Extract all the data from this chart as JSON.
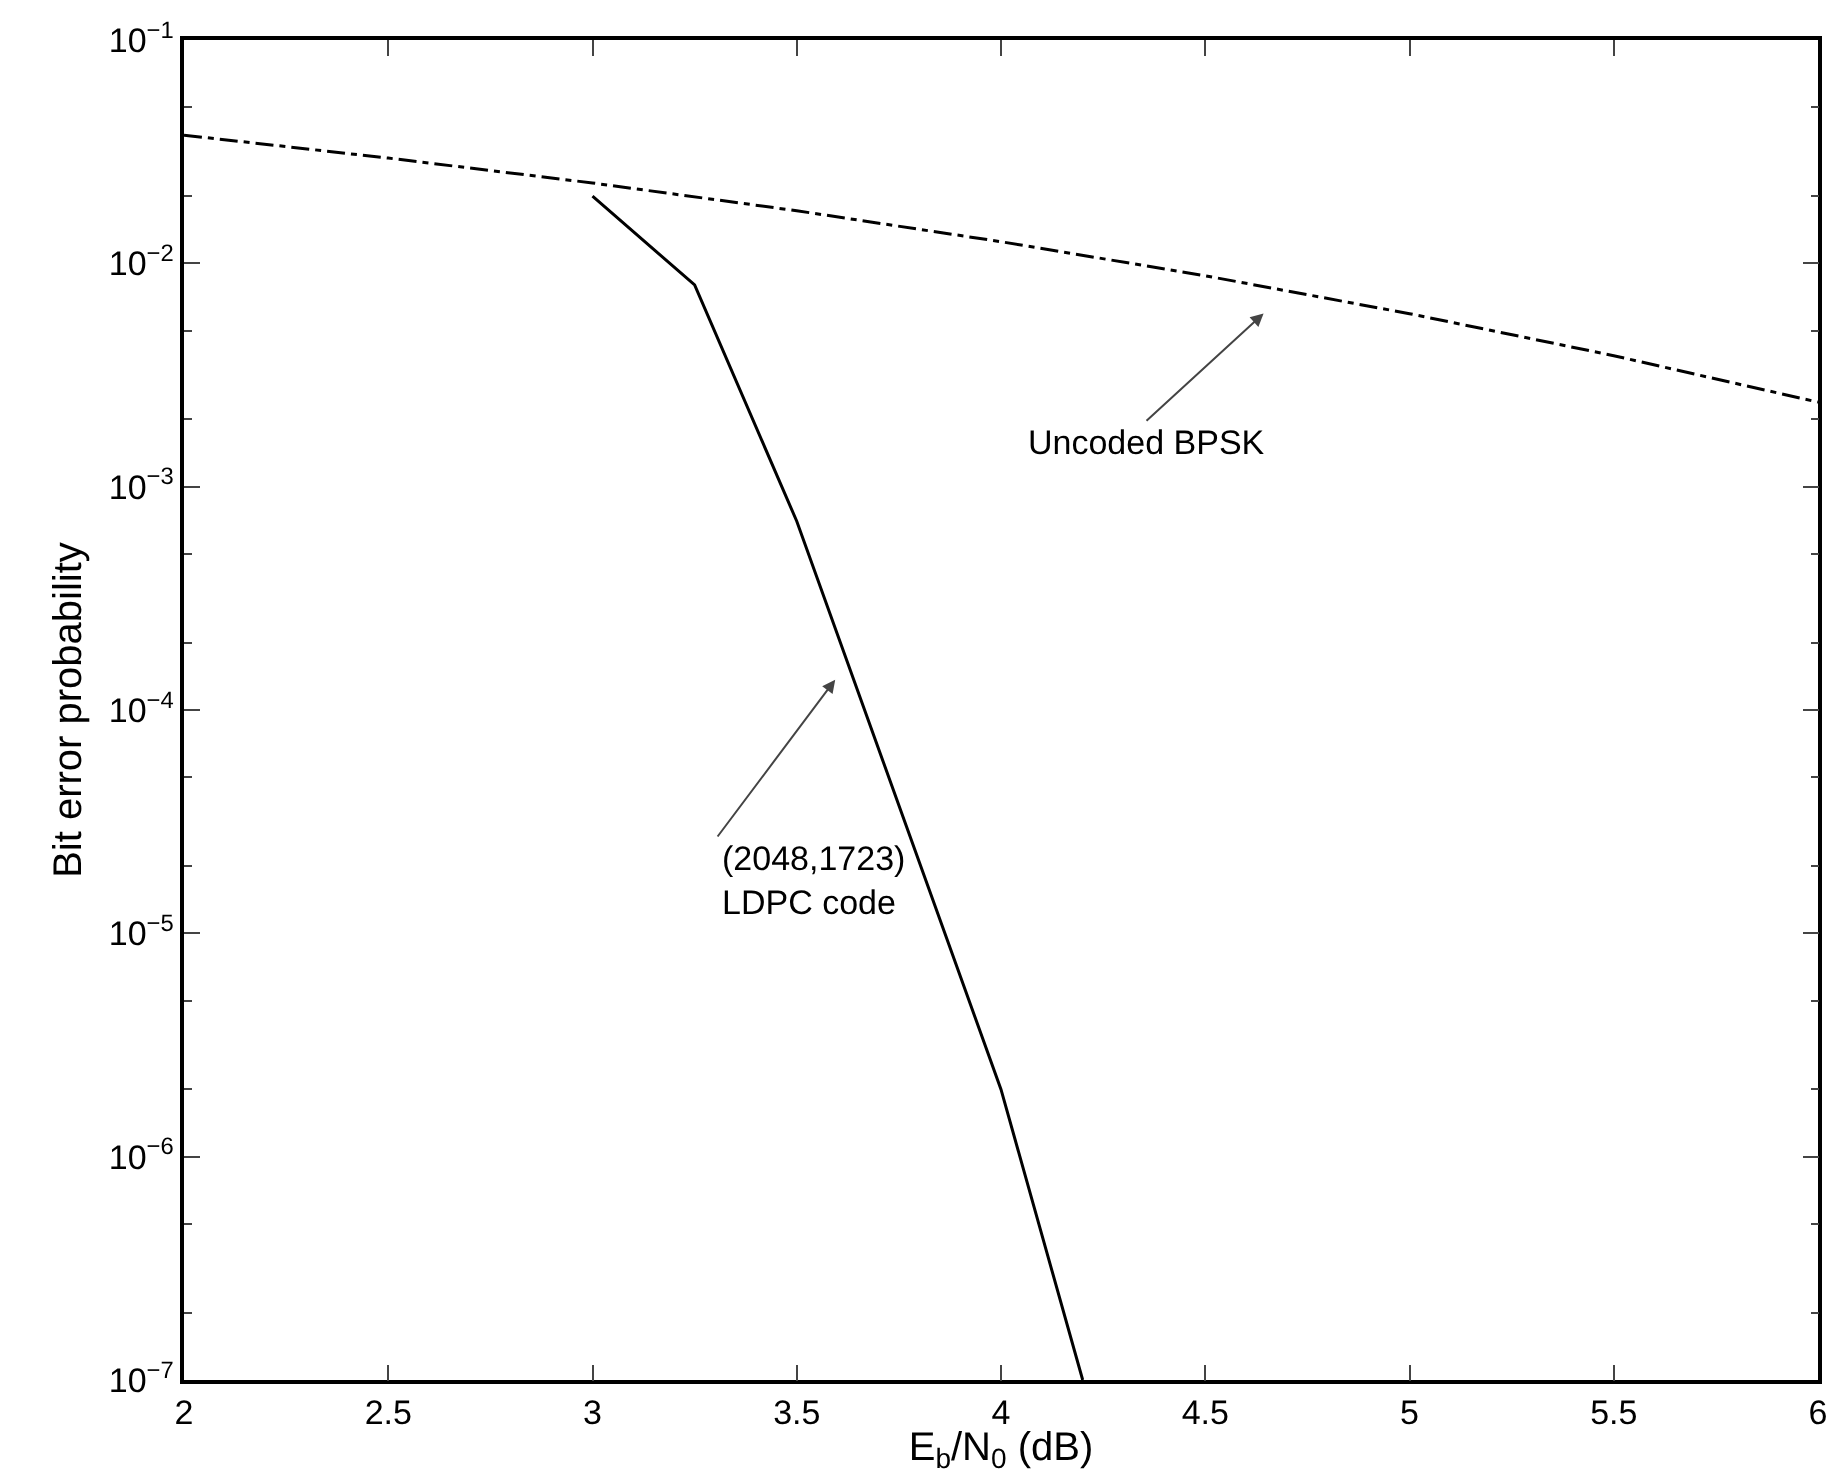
{
  "chart_data": {
    "type": "line",
    "xlabel": "E$_{b}$/N$_{0}$ (dB)",
    "ylabel": "Bit error probability",
    "log": "y",
    "grid": false,
    "marker": "none",
    "xlim": [
      2,
      6
    ],
    "xticks": [
      2,
      2.5,
      3,
      3.5,
      4,
      4.5,
      5,
      5.5,
      6
    ],
    "ylim": [
      1e-07,
      0.1
    ],
    "yticks": [
      {
        "value": 1e-07,
        "label": "10$^{−7}$"
      },
      {
        "value": 1e-06,
        "label": "10$^{−6}$"
      },
      {
        "value": 1e-05,
        "label": "10$^{−5}$"
      },
      {
        "value": 0.0001,
        "label": "10$^{−4}$"
      },
      {
        "value": 0.001,
        "label": "10$^{−3}$"
      },
      {
        "value": 0.01,
        "label": "10$^{−2}$"
      },
      {
        "value": 0.1,
        "label": "10$^{−1}$"
      }
    ],
    "series": [
      {
        "color": "#000000",
        "line_style": "dashdot",
        "x": [
          2,
          2.5,
          3,
          3.5,
          4,
          4.5,
          5,
          5.5,
          6
        ],
        "values": [
          0.0375,
          0.0296,
          0.0229,
          0.0172,
          0.0125,
          0.0088,
          0.00595,
          0.00386,
          0.00239
        ]
      },
      {
        "color": "#000000",
        "line_style": "solid",
        "x": [
          3,
          3.25,
          3.5,
          4,
          4.2
        ],
        "values": [
          0.02,
          0.008,
          0.0007,
          2e-06,
          1e-07
        ]
      }
    ],
    "annotations": [
      "Uncoded BPSK",
      "(2048,1723)\nLDPC code"
    ]
  }
}
